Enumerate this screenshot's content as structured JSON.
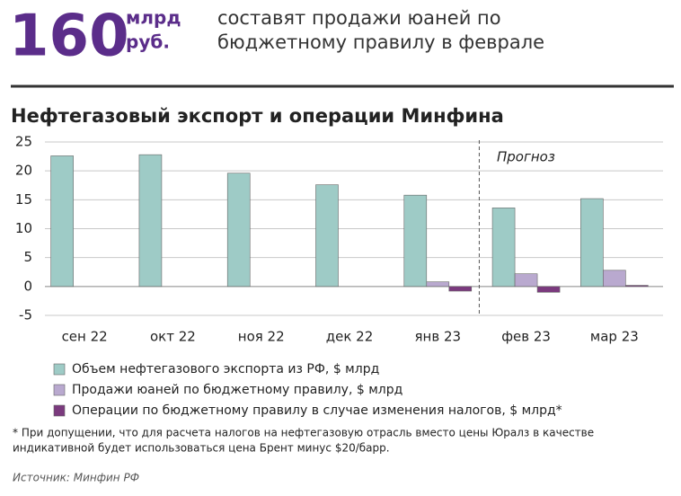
{
  "header": {
    "number": "160",
    "unit_top": "млрд",
    "unit_bottom": "руб.",
    "headline": [
      "составят продажи юаней по",
      "бюджетному правилу в феврале"
    ]
  },
  "chart_data": {
    "type": "bar",
    "title": "Нефтегазовый экспорт и операции Минфина",
    "annotation": "Прогноз",
    "categories": [
      "сен 22",
      "окт 22",
      "ноя 22",
      "дек 22",
      "янв 23",
      "фев 23",
      "мар 23"
    ],
    "series": [
      {
        "name": "Объем нефтегазового экспорта из РФ, $ млрд",
        "color": "#9ecbc6",
        "values": [
          22.6,
          22.8,
          19.6,
          17.6,
          15.8,
          13.6,
          15.2
        ]
      },
      {
        "name": "Продажи юаней по бюджетному правилу, $ млрд",
        "color": "#b9a9cf",
        "values": [
          null,
          null,
          null,
          null,
          0.8,
          2.2,
          2.8
        ]
      },
      {
        "name": "Операции по бюджетному правилу в случае изменения налогов, $ млрд*",
        "color": "#7b3a7e",
        "values": [
          null,
          null,
          null,
          null,
          -0.8,
          -1.0,
          0.2
        ]
      }
    ],
    "ylim": [
      -5,
      25
    ],
    "yticks": [
      -5,
      0,
      5,
      10,
      15,
      20,
      25
    ],
    "grid": true
  },
  "footnote": [
    "* При допущении, что для расчета налогов на нефтегазовую отрасль вместо цены Юралз в качестве",
    "индикативной будет использоваться цена Брент минус $20/барр."
  ],
  "source": "Источник: Минфин РФ"
}
